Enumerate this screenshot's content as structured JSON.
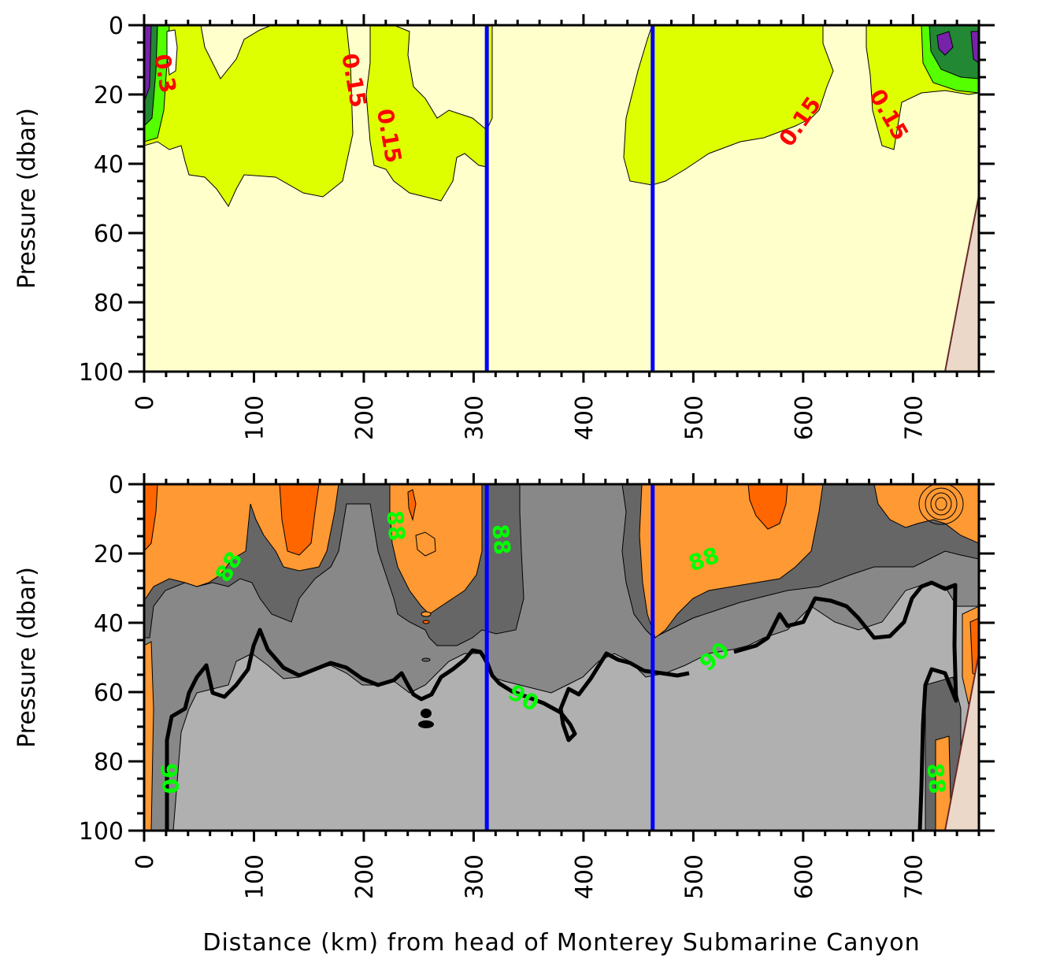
{
  "xlabel": "Distance (km) from head of Monterey Submarine Canyon",
  "chart_data": [
    {
      "type": "heatmap",
      "panel": "top",
      "ylabel": "Pressure (dbar)",
      "xlim": [
        0,
        760
      ],
      "ylim": [
        0,
        100
      ],
      "y_inverted": true,
      "x_ticks": [
        "0",
        "100",
        "200",
        "300",
        "400",
        "500",
        "600",
        "700"
      ],
      "y_ticks": [
        "0",
        "20",
        "40",
        "60",
        "80",
        "100"
      ],
      "vertical_lines_km": [
        312,
        463
      ],
      "vertical_line_color": "#0000ff",
      "background_fill": "#ffffcc",
      "contour_fill": "#ddff00",
      "bottom_fill": "#ecd8c8",
      "contour_labels": [
        {
          "text": "0.3",
          "x": 18,
          "y": 14
        },
        {
          "text": "0.15",
          "x": 190,
          "y": 16
        },
        {
          "text": "0.15",
          "x": 222,
          "y": 32
        },
        {
          "text": "0.15",
          "x": 598,
          "y": 28
        },
        {
          "text": "0.15",
          "x": 677,
          "y": 26
        }
      ],
      "label_color": "#ff0000"
    },
    {
      "type": "heatmap",
      "panel": "bottom",
      "ylabel": "Pressure (dbar)",
      "xlim": [
        0,
        760
      ],
      "ylim": [
        0,
        100
      ],
      "y_inverted": true,
      "x_ticks": [
        "0",
        "100",
        "200",
        "300",
        "400",
        "500",
        "600",
        "700"
      ],
      "y_ticks": [
        "0",
        "20",
        "40",
        "60",
        "80",
        "100"
      ],
      "vertical_lines_km": [
        312,
        463
      ],
      "vertical_line_color": "#0000ff",
      "levels_colors": [
        "#ff6600",
        "#ff9933",
        "#666666",
        "#888888",
        "#b0b0b0"
      ],
      "bottom_fill": "#ecd8c8",
      "contour_labels": [
        {
          "text": "88",
          "x": 78,
          "y": 24
        },
        {
          "text": "88",
          "x": 228,
          "y": 12
        },
        {
          "text": "88",
          "x": 324,
          "y": 16
        },
        {
          "text": "88",
          "x": 510,
          "y": 22
        },
        {
          "text": "90",
          "x": 345,
          "y": 62
        },
        {
          "text": "90",
          "x": 520,
          "y": 50
        },
        {
          "text": "90",
          "x": 22,
          "y": 85
        },
        {
          "text": "88",
          "x": 720,
          "y": 85
        }
      ],
      "label_color": "#00ff00"
    }
  ]
}
